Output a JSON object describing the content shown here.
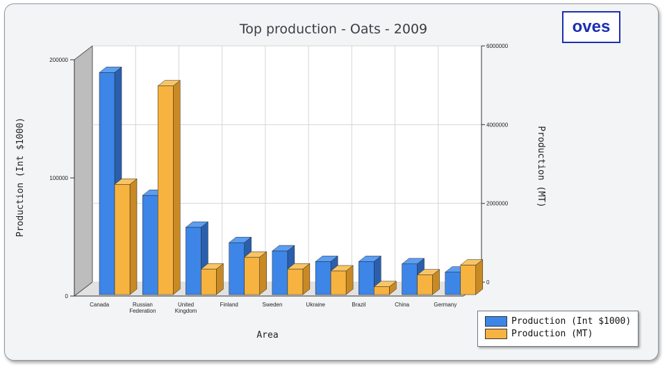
{
  "stamp": "oves",
  "chart_data": {
    "type": "bar",
    "title": "Top production - Oats - 2009",
    "xlabel": "Area",
    "ylabel_left": "Production (Int $1000)",
    "ylabel_right": "Production (MT)",
    "categories": [
      [
        "Canada"
      ],
      [
        "Russian",
        "Federation"
      ],
      [
        "United",
        "Kingdom"
      ],
      [
        "Finland"
      ],
      [
        "Sweden"
      ],
      [
        "Ukraine"
      ],
      [
        "Brazil"
      ],
      [
        "China"
      ],
      [
        "Germany"
      ]
    ],
    "y_left": {
      "range": [
        0,
        200000
      ],
      "ticks": [
        "0",
        "100000",
        "200000"
      ]
    },
    "y_right": {
      "range": [
        0,
        6000000
      ],
      "ticks": [
        "0",
        "2000000",
        "4000000",
        "6000000"
      ]
    },
    "grid": true,
    "legend_position": "bottom-right",
    "series": [
      {
        "name": "Production (Int $1000)",
        "axis": "left",
        "color": "#3d86e8",
        "side": "#2a5fae",
        "top": "#5b9ef2",
        "values": [
          188000,
          84000,
          57000,
          44000,
          37000,
          28000,
          28000,
          26000,
          19000
        ]
      },
      {
        "name": "Production (MT)",
        "axis": "right",
        "color": "#f7b33f",
        "side": "#c98a23",
        "top": "#f8c565",
        "values": [
          2800000,
          5300000,
          650000,
          950000,
          650000,
          600000,
          200000,
          500000,
          750000
        ]
      }
    ]
  }
}
